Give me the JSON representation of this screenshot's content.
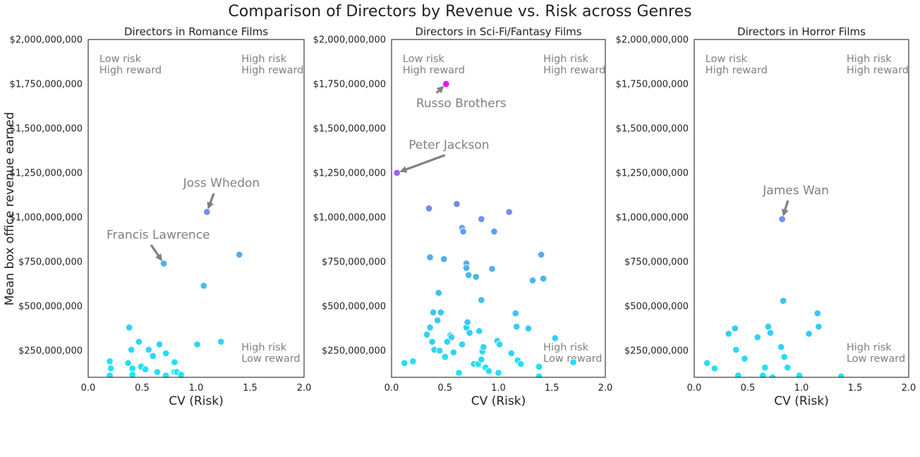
{
  "figure_title": "Comparison of Directors by Revenue vs. Risk across Genres",
  "ylabel": "Mean box office revenue earned",
  "quadrant_labels": {
    "tl": [
      "Low risk",
      "High reward"
    ],
    "tr": [
      "High risk",
      "High reward"
    ],
    "br": [
      "High risk",
      "Low reward"
    ]
  },
  "colors": {
    "low": "#21e4f8",
    "mid": "#5f9fee",
    "high": "#ff00ff",
    "annotation": "#808080"
  },
  "chart_data": [
    {
      "type": "scatter",
      "title": "Directors in Romance Films",
      "xlabel": "CV (Risk)",
      "xlim": [
        0,
        2
      ],
      "ylim": [
        100000000,
        2000000000
      ],
      "xticks": [
        0,
        0.5,
        1,
        1.5,
        2
      ],
      "xtick_labels": [
        "0.0",
        "0.5",
        "1.0",
        "1.5",
        "2.0"
      ],
      "yticks": [
        250000000,
        500000000,
        750000000,
        1000000000,
        1250000000,
        1500000000,
        1750000000,
        2000000000
      ],
      "ytick_labels": [
        "$250,000,000",
        "$500,000,000",
        "$750,000,000",
        "$1,000,000,000",
        "$1,250,000,000",
        "$1,500,000,000",
        "$1,750,000,000",
        "$2,000,000,000"
      ],
      "points": [
        {
          "x": 0.2,
          "y": 190000000
        },
        {
          "x": 0.21,
          "y": 150000000
        },
        {
          "x": 0.2,
          "y": 110000000
        },
        {
          "x": 0.37,
          "y": 180000000
        },
        {
          "x": 0.4,
          "y": 255000000
        },
        {
          "x": 0.38,
          "y": 380000000
        },
        {
          "x": 0.47,
          "y": 300000000
        },
        {
          "x": 0.41,
          "y": 150000000
        },
        {
          "x": 0.41,
          "y": 115000000
        },
        {
          "x": 0.49,
          "y": 160000000
        },
        {
          "x": 0.53,
          "y": 145000000
        },
        {
          "x": 0.56,
          "y": 255000000
        },
        {
          "x": 0.6,
          "y": 220000000
        },
        {
          "x": 0.66,
          "y": 285000000
        },
        {
          "x": 0.64,
          "y": 130000000
        },
        {
          "x": 0.72,
          "y": 110000000
        },
        {
          "x": 0.72,
          "y": 235000000
        },
        {
          "x": 0.8,
          "y": 185000000
        },
        {
          "x": 0.8,
          "y": 130000000
        },
        {
          "x": 0.82,
          "y": 130000000
        },
        {
          "x": 0.86,
          "y": 115000000
        },
        {
          "x": 1.01,
          "y": 285000000
        },
        {
          "x": 1.23,
          "y": 300000000
        },
        {
          "x": 1.07,
          "y": 615000000
        },
        {
          "x": 0.7,
          "y": 740000000
        },
        {
          "x": 1.1,
          "y": 1030000000
        },
        {
          "x": 1.4,
          "y": 790000000
        }
      ],
      "annotations": [
        {
          "text": "Joss Whedon",
          "point": [
            1.1,
            1030000000
          ],
          "text_at": [
            0.88,
            1170000000
          ]
        },
        {
          "text": "Francis Lawrence",
          "point": [
            0.7,
            740000000
          ],
          "text_at": [
            0.17,
            880000000
          ]
        }
      ]
    },
    {
      "type": "scatter",
      "title": "Directors in Sci-Fi/Fantasy Films",
      "xlabel": "CV (Risk)",
      "xlim": [
        0,
        2
      ],
      "ylim": [
        100000000,
        2000000000
      ],
      "xticks": [
        0,
        0.5,
        1,
        1.5,
        2
      ],
      "xtick_labels": [
        "0.0",
        "0.5",
        "1.0",
        "1.5",
        "2.0"
      ],
      "yticks": [
        250000000,
        500000000,
        750000000,
        1000000000,
        1250000000,
        1500000000,
        1750000000,
        2000000000
      ],
      "ytick_labels": [
        "$250,000,000",
        "$500,000,000",
        "$750,000,000",
        "$1,000,000,000",
        "$1,250,000,000",
        "$1,500,000,000",
        "$1,750,000,000",
        "$2,000,000,000"
      ],
      "points": [
        {
          "x": 0.12,
          "y": 180000000
        },
        {
          "x": 0.2,
          "y": 190000000
        },
        {
          "x": 0.33,
          "y": 340000000
        },
        {
          "x": 0.38,
          "y": 300000000
        },
        {
          "x": 0.39,
          "y": 465000000
        },
        {
          "x": 0.4,
          "y": 255000000
        },
        {
          "x": 0.36,
          "y": 380000000
        },
        {
          "x": 0.45,
          "y": 250000000
        },
        {
          "x": 0.46,
          "y": 465000000
        },
        {
          "x": 0.43,
          "y": 420000000
        },
        {
          "x": 0.5,
          "y": 215000000
        },
        {
          "x": 0.55,
          "y": 335000000
        },
        {
          "x": 0.56,
          "y": 325000000
        },
        {
          "x": 0.58,
          "y": 240000000
        },
        {
          "x": 0.52,
          "y": 300000000
        },
        {
          "x": 0.63,
          "y": 125000000
        },
        {
          "x": 0.66,
          "y": 285000000
        },
        {
          "x": 0.7,
          "y": 380000000
        },
        {
          "x": 0.71,
          "y": 410000000
        },
        {
          "x": 0.73,
          "y": 350000000
        },
        {
          "x": 0.77,
          "y": 175000000
        },
        {
          "x": 0.81,
          "y": 175000000
        },
        {
          "x": 0.82,
          "y": 360000000
        },
        {
          "x": 0.84,
          "y": 200000000
        },
        {
          "x": 0.85,
          "y": 245000000
        },
        {
          "x": 0.86,
          "y": 270000000
        },
        {
          "x": 0.88,
          "y": 155000000
        },
        {
          "x": 0.91,
          "y": 135000000
        },
        {
          "x": 0.99,
          "y": 305000000
        },
        {
          "x": 1.01,
          "y": 285000000
        },
        {
          "x": 1.0,
          "y": 125000000
        },
        {
          "x": 1.12,
          "y": 235000000
        },
        {
          "x": 1.16,
          "y": 460000000
        },
        {
          "x": 1.17,
          "y": 385000000
        },
        {
          "x": 1.18,
          "y": 195000000
        },
        {
          "x": 1.21,
          "y": 175000000
        },
        {
          "x": 1.28,
          "y": 375000000
        },
        {
          "x": 1.38,
          "y": 160000000
        },
        {
          "x": 1.38,
          "y": 105000000
        },
        {
          "x": 1.53,
          "y": 320000000
        },
        {
          "x": 1.7,
          "y": 185000000
        },
        {
          "x": 0.44,
          "y": 575000000
        },
        {
          "x": 0.36,
          "y": 775000000
        },
        {
          "x": 0.49,
          "y": 765000000
        },
        {
          "x": 0.7,
          "y": 740000000
        },
        {
          "x": 0.7,
          "y": 715000000
        },
        {
          "x": 0.72,
          "y": 675000000
        },
        {
          "x": 0.79,
          "y": 665000000
        },
        {
          "x": 0.94,
          "y": 710000000
        },
        {
          "x": 0.84,
          "y": 535000000
        },
        {
          "x": 1.32,
          "y": 645000000
        },
        {
          "x": 1.42,
          "y": 655000000
        },
        {
          "x": 1.4,
          "y": 790000000
        },
        {
          "x": 0.35,
          "y": 1050000000
        },
        {
          "x": 0.61,
          "y": 1075000000
        },
        {
          "x": 0.66,
          "y": 940000000
        },
        {
          "x": 0.67,
          "y": 920000000
        },
        {
          "x": 0.84,
          "y": 990000000
        },
        {
          "x": 0.96,
          "y": 920000000
        },
        {
          "x": 1.1,
          "y": 1030000000
        },
        {
          "x": 0.05,
          "y": 1250000000
        },
        {
          "x": 0.51,
          "y": 1750000000
        }
      ],
      "annotations": [
        {
          "text": "Peter Jackson",
          "point": [
            0.05,
            1250000000
          ],
          "text_at": [
            0.16,
            1385000000
          ]
        },
        {
          "text": "Russo Brothers",
          "point": [
            0.51,
            1750000000
          ],
          "text_at": [
            0.23,
            1620000000
          ]
        }
      ]
    },
    {
      "type": "scatter",
      "title": "Directors in Horror Films",
      "xlabel": "CV (Risk)",
      "xlim": [
        0,
        2
      ],
      "ylim": [
        100000000,
        2000000000
      ],
      "xticks": [
        0,
        0.5,
        1,
        1.5,
        2
      ],
      "xtick_labels": [
        "0.0",
        "0.5",
        "1.0",
        "1.5",
        "2.0"
      ],
      "yticks": [
        250000000,
        500000000,
        750000000,
        1000000000,
        1250000000,
        1500000000,
        1750000000,
        2000000000
      ],
      "ytick_labels": [
        "$250,000,000",
        "$500,000,000",
        "$750,000,000",
        "$1,000,000,000",
        "$1,250,000,000",
        "$1,500,000,000",
        "$1,750,000,000",
        "$2,000,000,000"
      ],
      "points": [
        {
          "x": 0.12,
          "y": 180000000
        },
        {
          "x": 0.19,
          "y": 150000000
        },
        {
          "x": 0.32,
          "y": 345000000
        },
        {
          "x": 0.38,
          "y": 375000000
        },
        {
          "x": 0.39,
          "y": 255000000
        },
        {
          "x": 0.41,
          "y": 110000000
        },
        {
          "x": 0.47,
          "y": 205000000
        },
        {
          "x": 0.59,
          "y": 325000000
        },
        {
          "x": 0.64,
          "y": 110000000
        },
        {
          "x": 0.66,
          "y": 155000000
        },
        {
          "x": 0.69,
          "y": 385000000
        },
        {
          "x": 0.71,
          "y": 350000000
        },
        {
          "x": 0.73,
          "y": 100000000
        },
        {
          "x": 0.81,
          "y": 270000000
        },
        {
          "x": 0.84,
          "y": 215000000
        },
        {
          "x": 0.87,
          "y": 155000000
        },
        {
          "x": 0.98,
          "y": 110000000
        },
        {
          "x": 1.07,
          "y": 345000000
        },
        {
          "x": 1.16,
          "y": 385000000
        },
        {
          "x": 1.15,
          "y": 460000000
        },
        {
          "x": 1.37,
          "y": 105000000
        },
        {
          "x": 0.83,
          "y": 530000000
        },
        {
          "x": 0.82,
          "y": 990000000
        }
      ],
      "annotations": [
        {
          "text": "James Wan",
          "point": [
            0.82,
            990000000
          ],
          "text_at": [
            0.64,
            1130000000
          ]
        }
      ]
    }
  ]
}
